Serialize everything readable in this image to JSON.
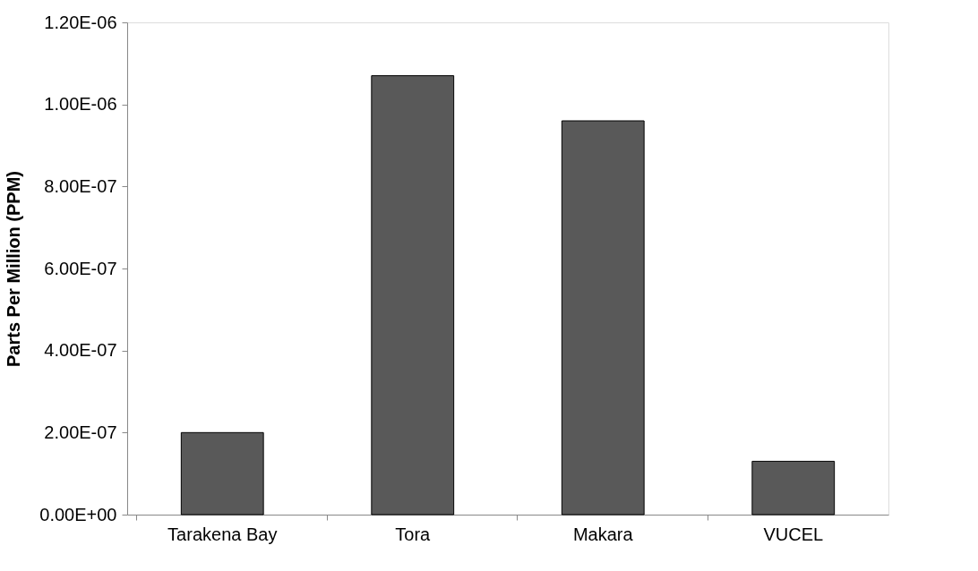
{
  "chart_data": {
    "type": "bar",
    "ylabel": "Parts Per Million (PPM)",
    "categories": [
      "Tarakena Bay",
      "Tora",
      "Makara",
      "VUCEL"
    ],
    "values": [
      2e-07,
      1.07e-06,
      9.6e-07,
      1.3e-07
    ],
    "color": "#595959",
    "ylim": [
      0,
      1.2e-06
    ],
    "yticks": [
      {
        "value": 0,
        "label": "0.00E+00"
      },
      {
        "value": 2e-07,
        "label": "2.00E-07"
      },
      {
        "value": 4e-07,
        "label": "4.00E-07"
      },
      {
        "value": 6e-07,
        "label": "6.00E-07"
      },
      {
        "value": 8e-07,
        "label": "8.00E-07"
      },
      {
        "value": 1e-06,
        "label": "1.00E-06"
      },
      {
        "value": 1.2e-06,
        "label": "1.20E-06"
      }
    ],
    "grid": false
  }
}
